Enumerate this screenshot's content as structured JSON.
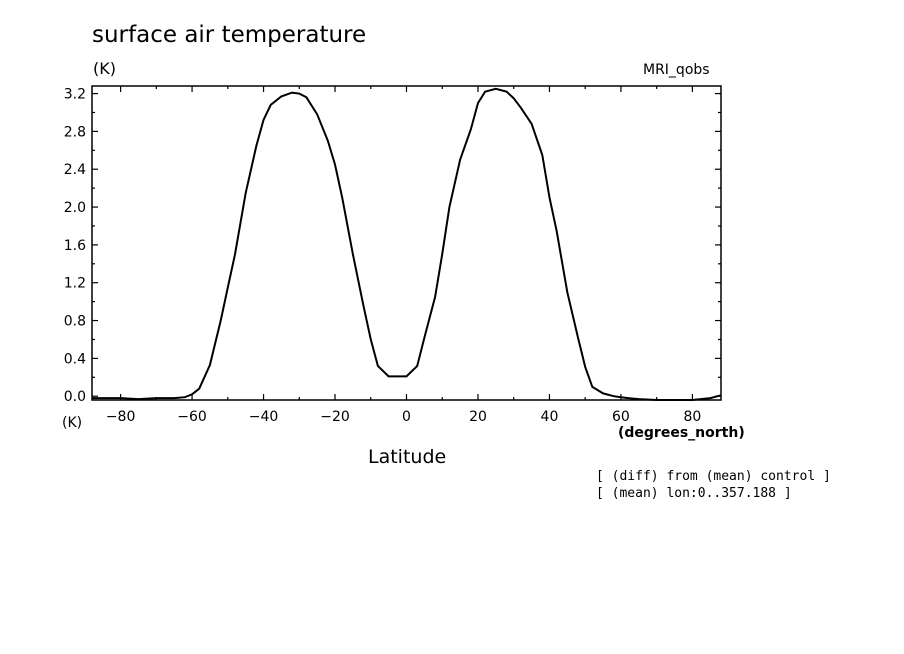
{
  "chart_data": {
    "type": "line",
    "title": "surface air temperature",
    "ylabel": "(K)",
    "xunit_left": "(K)",
    "xunit_right": "(degrees_north)",
    "xlabel": "Latitude",
    "top_right_label": "MRI_qobs",
    "notes": [
      "[ (diff) from (mean) control ]",
      "[ (mean) lon:0..357.188 ]"
    ],
    "xlim": [
      -88,
      88
    ],
    "ylim": [
      -0.04,
      3.28
    ],
    "x_ticks": [
      -80,
      -60,
      -40,
      -20,
      0,
      20,
      40,
      60,
      80
    ],
    "x_tick_labels": [
      "−80",
      "−60",
      "−40",
      "−20",
      "0",
      "20",
      "40",
      "60",
      "80"
    ],
    "y_ticks": [
      0.0,
      0.4,
      0.8,
      1.2,
      1.6,
      2.0,
      2.4,
      2.8,
      3.2
    ],
    "y_tick_labels": [
      "0.0",
      "0.4",
      "0.8",
      "1.2",
      "1.6",
      "2.0",
      "2.4",
      "2.8",
      "3.2"
    ],
    "grid": false,
    "series": [
      {
        "x": [
          -88,
          -85,
          -80,
          -75,
          -70,
          -65,
          -62,
          -60,
          -58,
          -55,
          -52,
          -50,
          -48,
          -45,
          -42,
          -40,
          -38,
          -35,
          -32,
          -30,
          -28,
          -25,
          -22,
          -20,
          -18,
          -15,
          -12,
          -10,
          -8,
          -5,
          -3,
          0,
          3,
          5,
          8,
          10,
          12,
          15,
          18,
          20,
          22,
          25,
          28,
          30,
          32,
          35,
          38,
          40,
          42,
          45,
          48,
          50,
          52,
          55,
          58,
          60,
          62,
          65,
          70,
          75,
          80,
          85,
          88
        ],
        "y": [
          -0.02,
          -0.02,
          -0.02,
          -0.03,
          -0.02,
          -0.02,
          -0.01,
          0.02,
          0.08,
          0.33,
          0.8,
          1.15,
          1.5,
          2.15,
          2.65,
          2.92,
          3.08,
          3.17,
          3.21,
          3.2,
          3.16,
          2.98,
          2.7,
          2.45,
          2.1,
          1.5,
          0.95,
          0.6,
          0.32,
          0.21,
          0.21,
          0.21,
          0.32,
          0.62,
          1.05,
          1.5,
          2.0,
          2.5,
          2.82,
          3.1,
          3.22,
          3.25,
          3.22,
          3.15,
          3.05,
          2.88,
          2.55,
          2.1,
          1.75,
          1.1,
          0.62,
          0.31,
          0.1,
          0.03,
          0.0,
          -0.01,
          -0.02,
          -0.03,
          -0.04,
          -0.04,
          -0.04,
          -0.02,
          0.01
        ]
      }
    ]
  }
}
